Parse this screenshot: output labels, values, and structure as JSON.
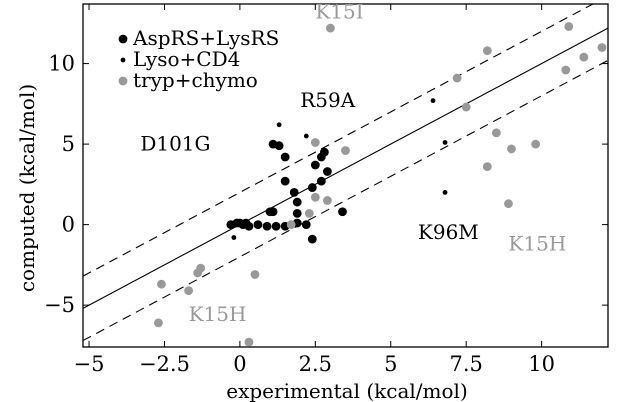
{
  "chart_data": {
    "type": "scatter",
    "xlabel": "experimental (kcal/mol)",
    "ylabel": "computed (kcal/mol)",
    "xlim": [
      -5.2,
      12.2
    ],
    "ylim": [
      -7.6,
      13.7
    ],
    "xticks": [
      -5,
      -2.5,
      0,
      2.5,
      5,
      7.5,
      10
    ],
    "xtick_labels": [
      "−5",
      "−2.5",
      "0",
      "2.5",
      "5",
      "7.5",
      "10"
    ],
    "yticks": [
      -5,
      0,
      5,
      10
    ],
    "ytick_labels": [
      "−5",
      "0",
      "5",
      "10"
    ],
    "grid": false,
    "legend_position": "top-left",
    "reference_lines": [
      {
        "style": "solid",
        "offset": 0,
        "slope": 1
      },
      {
        "style": "dashed",
        "offset": 2,
        "slope": 1
      },
      {
        "style": "dashed",
        "offset": -2,
        "slope": 1
      }
    ],
    "series": [
      {
        "name": "AspRS+LysRS",
        "color": "#000000",
        "marker": "large",
        "points": [
          [
            -0.3,
            0.0
          ],
          [
            -0.1,
            0.1
          ],
          [
            0.0,
            0.1
          ],
          [
            0.1,
            0.0
          ],
          [
            0.2,
            0.1
          ],
          [
            0.3,
            -0.1
          ],
          [
            0.6,
            0.0
          ],
          [
            0.9,
            -0.1
          ],
          [
            1.0,
            0.8
          ],
          [
            1.2,
            -0.1
          ],
          [
            1.5,
            -0.1
          ],
          [
            1.9,
            0.1
          ],
          [
            2.2,
            0.0
          ],
          [
            1.9,
            0.7
          ],
          [
            1.9,
            1.4
          ],
          [
            1.8,
            2.0
          ],
          [
            1.5,
            2.7
          ],
          [
            1.5,
            4.2
          ],
          [
            1.1,
            5.0
          ],
          [
            1.3,
            4.9
          ],
          [
            1.1,
            0.8
          ],
          [
            2.4,
            2.3
          ],
          [
            2.5,
            3.7
          ],
          [
            2.7,
            4.2
          ],
          [
            2.8,
            4.5
          ],
          [
            2.9,
            3.3
          ],
          [
            2.7,
            2.7
          ],
          [
            2.4,
            -0.9
          ],
          [
            3.4,
            0.8
          ]
        ]
      },
      {
        "name": "Lyso+CD4",
        "color": "#000000",
        "marker": "small",
        "points": [
          [
            -0.2,
            -0.8
          ],
          [
            -0.3,
            0.1
          ],
          [
            1.3,
            6.2
          ],
          [
            2.2,
            5.5
          ],
          [
            6.4,
            7.7
          ],
          [
            6.8,
            5.1
          ],
          [
            6.8,
            2.0
          ]
        ]
      },
      {
        "name": "tryp+chymo",
        "color": "#999999",
        "marker": "large",
        "points": [
          [
            -2.7,
            -6.1
          ],
          [
            -2.6,
            -3.7
          ],
          [
            -1.7,
            -4.1
          ],
          [
            -1.4,
            -3.0
          ],
          [
            -1.3,
            -2.7
          ],
          [
            0.5,
            -3.1
          ],
          [
            0.3,
            -7.3
          ],
          [
            1.7,
            0.0
          ],
          [
            2.3,
            0.7
          ],
          [
            2.5,
            1.7
          ],
          [
            2.5,
            5.1
          ],
          [
            2.9,
            1.5
          ],
          [
            3.0,
            12.2
          ],
          [
            3.5,
            4.6
          ],
          [
            7.2,
            9.1
          ],
          [
            7.5,
            7.3
          ],
          [
            8.2,
            10.8
          ],
          [
            8.2,
            3.6
          ],
          [
            8.5,
            5.7
          ],
          [
            8.9,
            1.3
          ],
          [
            9.0,
            4.7
          ],
          [
            9.8,
            5.0
          ],
          [
            10.8,
            9.6
          ],
          [
            10.9,
            12.3
          ],
          [
            11.4,
            10.4
          ],
          [
            12.0,
            11.0
          ]
        ]
      }
    ],
    "annotations": [
      {
        "text": "K15I",
        "x": 2.5,
        "y": 12.8,
        "color": "#999999"
      },
      {
        "text": "R59A",
        "x": 2.0,
        "y": 7.3,
        "color": "#000000"
      },
      {
        "text": "D101G",
        "x": -3.3,
        "y": 4.6,
        "color": "#000000"
      },
      {
        "text": "K96M",
        "x": 5.9,
        "y": -0.9,
        "color": "#000000"
      },
      {
        "text": "K15H",
        "x": 8.9,
        "y": -1.6,
        "color": "#999999"
      },
      {
        "text": "K15H",
        "x": -1.7,
        "y": -6.0,
        "color": "#999999"
      }
    ]
  }
}
